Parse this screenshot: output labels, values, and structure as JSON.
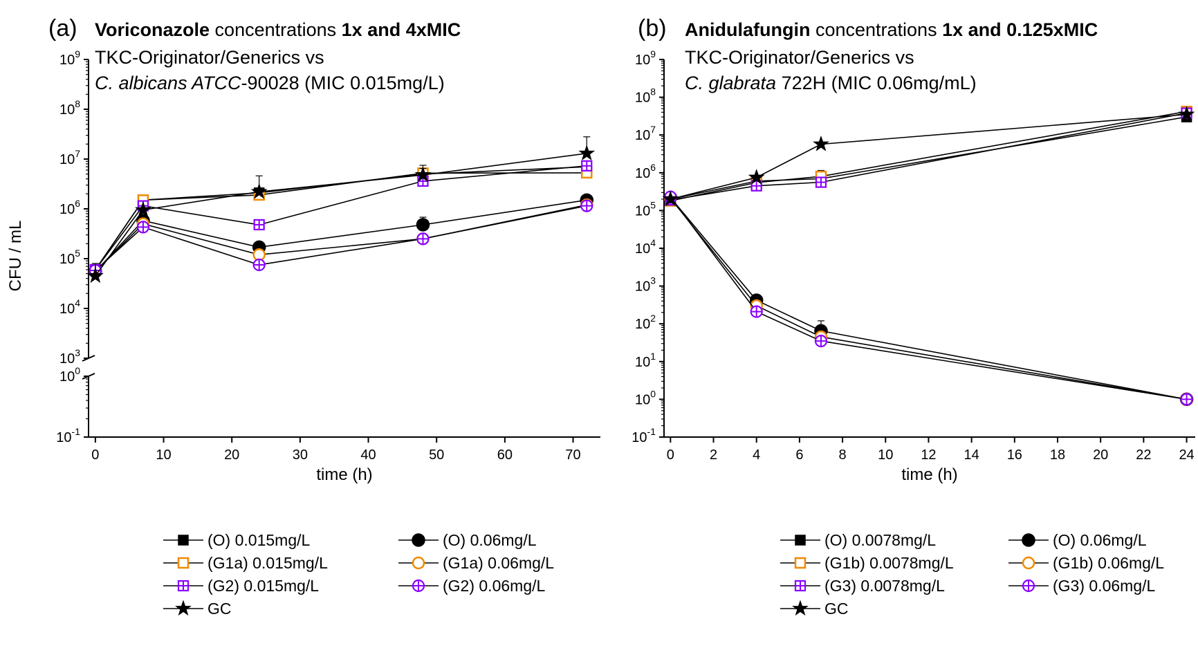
{
  "chart_data": [
    {
      "type": "scatter",
      "panel_label": "(a)",
      "title_parts": [
        {
          "text": "Voriconazole",
          "bold": true
        },
        {
          "text": " concentrations ",
          "bold": false
        },
        {
          "text": "1x and 4xMIC",
          "bold": true
        }
      ],
      "subtitle_line1": "TKC-Originator/Generics vs",
      "subtitle_line2_parts": [
        {
          "text": "C. albicans ATCC",
          "italic": true
        },
        {
          "text": "-90028 (MIC 0.015mg/L)",
          "italic": false
        }
      ],
      "xlabel": "time (h)",
      "ylabel": "CFU / mL",
      "xlim": [
        -1,
        74
      ],
      "xticks": [
        "0",
        "10",
        "20",
        "30",
        "40",
        "50",
        "60",
        "70"
      ],
      "yscale": "log-broken",
      "ylim_upper": [
        1000,
        1000000000
      ],
      "ylim_lower": [
        0.1,
        1
      ],
      "yticks_upper": [
        1000,
        10000,
        100000,
        1000000,
        10000000,
        100000000,
        1000000000
      ],
      "yticks_lower": [
        0.1,
        1
      ],
      "ytick_exponents_upper": [
        "3",
        "4",
        "5",
        "6",
        "7",
        "8",
        "9"
      ],
      "ytick_exponents_lower": [
        "-1",
        "0"
      ],
      "ytick_base": "10",
      "series": [
        {
          "name": "(O) 0.015mg/L",
          "marker": "square-filled",
          "color": "#000000",
          "x": [
            0,
            7,
            24,
            48,
            72
          ],
          "y": [
            60000,
            1500000,
            2100000,
            5000000,
            7000000
          ],
          "err": [
            null,
            null,
            null,
            7500000,
            null
          ]
        },
        {
          "name": "(O) 0.06mg/L",
          "marker": "circle-filled",
          "color": "#000000",
          "x": [
            0,
            7,
            24,
            48,
            72
          ],
          "y": [
            55000,
            580000,
            170000,
            480000,
            1500000
          ],
          "err": [
            null,
            null,
            null,
            680000,
            null
          ]
        },
        {
          "name": "(G1a) 0.015mg/L",
          "marker": "square-open",
          "color": "#f08a00",
          "x": [
            0,
            7,
            24,
            48,
            72
          ],
          "y": [
            60000,
            1500000,
            1900000,
            5200000,
            5300000
          ],
          "err": [
            null,
            null,
            null,
            null,
            null
          ]
        },
        {
          "name": "(G1a) 0.06mg/L",
          "marker": "circle-open",
          "color": "#f08a00",
          "x": [
            0,
            7,
            24,
            48,
            72
          ],
          "y": [
            55000,
            500000,
            120000,
            250000,
            1200000
          ],
          "err": [
            null,
            null,
            null,
            null,
            null
          ]
        },
        {
          "name": "(G2) 0.015mg/L",
          "marker": "square-plus",
          "color": "#8a00ff",
          "x": [
            0,
            7,
            24,
            48,
            72
          ],
          "y": [
            60000,
            1150000,
            480000,
            3600000,
            7300000
          ],
          "err": [
            null,
            null,
            null,
            null,
            null
          ]
        },
        {
          "name": "(G2) 0.06mg/L",
          "marker": "circle-plus",
          "color": "#8a00ff",
          "x": [
            0,
            7,
            24,
            48,
            72
          ],
          "y": [
            58000,
            430000,
            75000,
            250000,
            1150000
          ],
          "err": [
            null,
            null,
            null,
            null,
            null
          ]
        },
        {
          "name": "GC",
          "marker": "star",
          "color": "#000000",
          "x": [
            0,
            7,
            24,
            48,
            72
          ],
          "y": [
            45000,
            950000,
            2200000,
            4800000,
            13000000
          ],
          "err": [
            80000,
            null,
            4600000,
            6500000,
            28000000
          ]
        }
      ],
      "legend_placement": "bottom"
    },
    {
      "type": "scatter",
      "panel_label": "(b)",
      "title_parts": [
        {
          "text": "Anidulafungin",
          "bold": true
        },
        {
          "text": " concentrations ",
          "bold": false
        },
        {
          "text": "1x and 0.125xMIC",
          "bold": true
        }
      ],
      "subtitle_line1": "TKC-Originator/Generics vs",
      "subtitle_line2_parts": [
        {
          "text": "C. glabrata",
          "italic": true
        },
        {
          "text": " 722H (MIC 0.06mg/mL)",
          "italic": false
        }
      ],
      "xlabel": "time (h)",
      "ylabel": "",
      "xlim": [
        -0.3,
        24.4
      ],
      "xticks": [
        "0",
        "2",
        "4",
        "6",
        "8",
        "10",
        "12",
        "14",
        "16",
        "18",
        "20",
        "22",
        "24"
      ],
      "yscale": "log",
      "ylim": [
        0.1,
        1000000000
      ],
      "yticks": [
        0.1,
        1,
        10,
        100,
        1000,
        10000,
        100000,
        1000000,
        10000000,
        100000000,
        1000000000
      ],
      "ytick_exponents": [
        "-1",
        "0",
        "1",
        "2",
        "3",
        "4",
        "5",
        "6",
        "7",
        "8",
        "9"
      ],
      "ytick_base": "10",
      "series": [
        {
          "name": "(O) 0.0078mg/L",
          "marker": "square-filled",
          "color": "#000000",
          "x": [
            0,
            4,
            7,
            24
          ],
          "y": [
            200000,
            600000,
            700000,
            30000000
          ],
          "err": [
            null,
            null,
            null,
            null
          ]
        },
        {
          "name": "(O) 0.06mg/L",
          "marker": "circle-filled",
          "color": "#000000",
          "x": [
            0,
            4,
            7,
            24
          ],
          "y": [
            220000,
            420,
            65,
            1
          ],
          "err": [
            null,
            null,
            120,
            null
          ]
        },
        {
          "name": "(G1b) 0.0078mg/L",
          "marker": "square-open",
          "color": "#f08a00",
          "x": [
            0,
            4,
            7,
            24
          ],
          "y": [
            180000,
            550000,
            800000,
            42000000
          ],
          "err": [
            null,
            null,
            1150000,
            null
          ]
        },
        {
          "name": "(G1b) 0.06mg/L",
          "marker": "circle-open",
          "color": "#f08a00",
          "x": [
            0,
            4,
            7,
            24
          ],
          "y": [
            210000,
            300,
            45,
            1
          ],
          "err": [
            null,
            null,
            null,
            null
          ]
        },
        {
          "name": "(G3) 0.0078mg/L",
          "marker": "square-plus",
          "color": "#8a00ff",
          "x": [
            0,
            4,
            7,
            24
          ],
          "y": [
            190000,
            450000,
            560000,
            38000000
          ],
          "err": [
            null,
            null,
            null,
            null
          ]
        },
        {
          "name": "(G3) 0.06mg/L",
          "marker": "circle-plus",
          "color": "#8a00ff",
          "x": [
            0,
            4,
            7,
            24
          ],
          "y": [
            230000,
            210,
            35,
            1
          ],
          "err": [
            null,
            null,
            null,
            null
          ]
        },
        {
          "name": "GC",
          "marker": "star",
          "color": "#000000",
          "x": [
            0,
            4,
            7,
            24
          ],
          "y": [
            200000,
            750000,
            5700000,
            35000000
          ],
          "err": [
            null,
            null,
            null,
            null
          ]
        }
      ],
      "legend_placement": "bottom"
    }
  ]
}
